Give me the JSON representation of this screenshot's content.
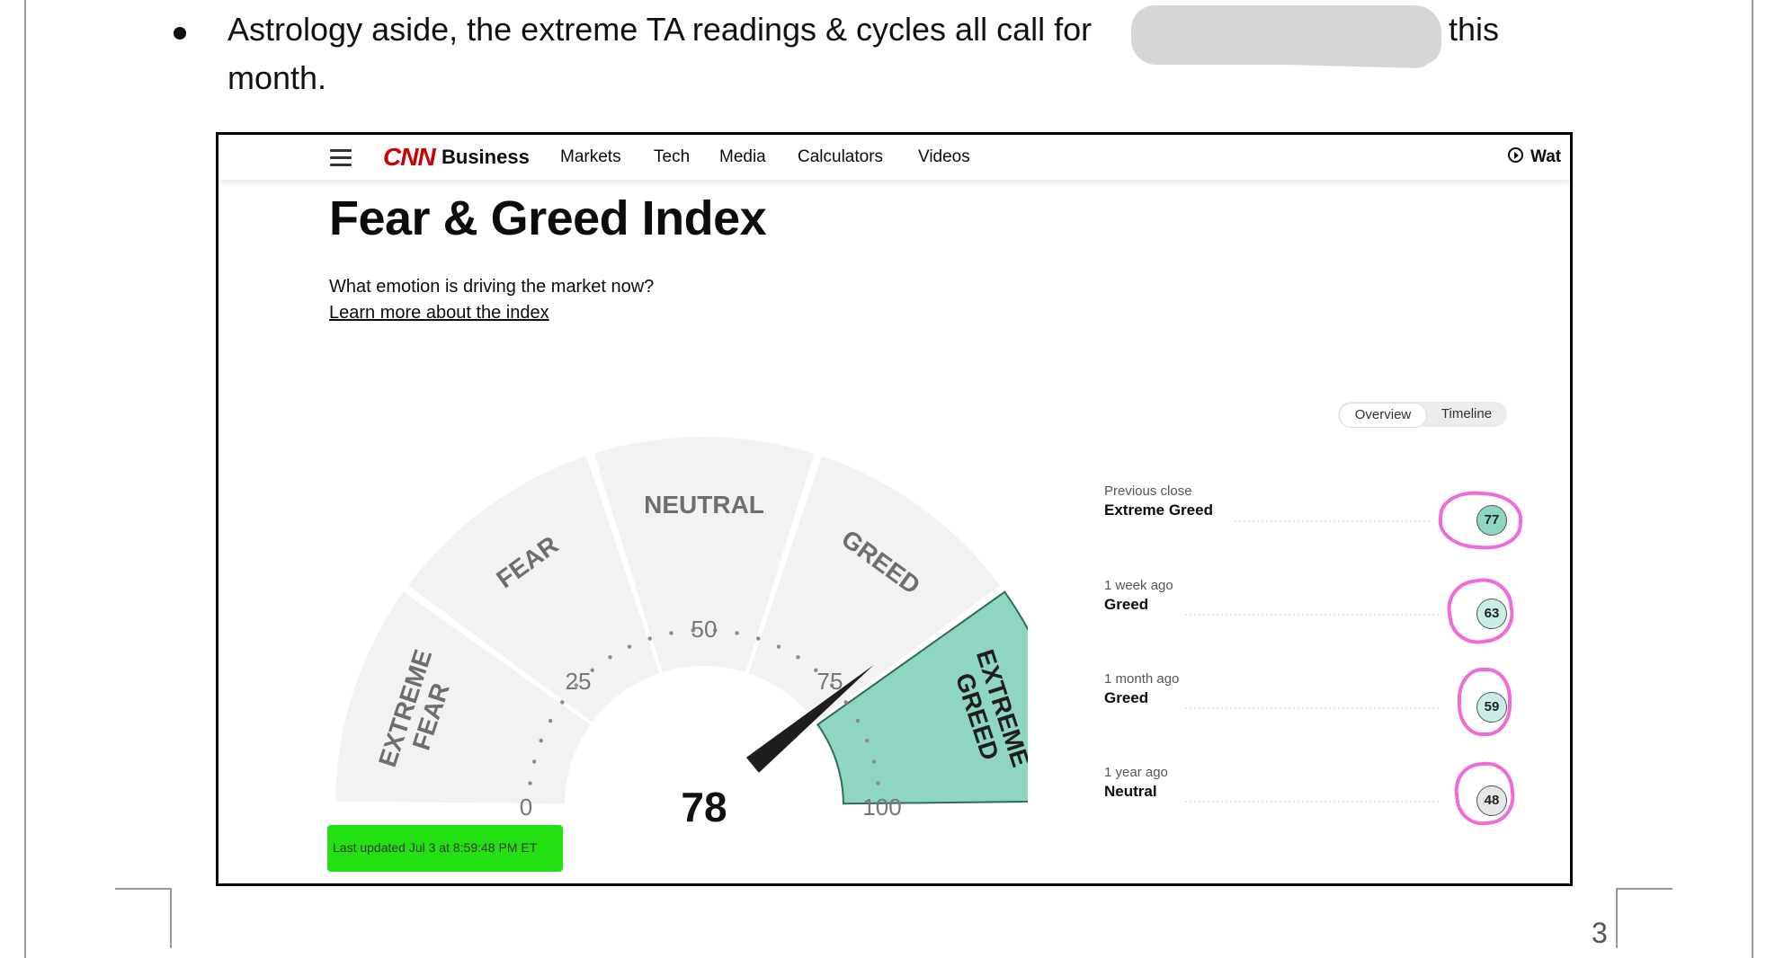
{
  "document": {
    "bullet_text_before": "Astrology aside, the extreme TA readings & cycles all call for",
    "bullet_text_after": "this",
    "bullet_text_line2": "month.",
    "page_number": "3"
  },
  "nav": {
    "logo_cnn": "CNN",
    "logo_business": "Business",
    "items": [
      "Markets",
      "Tech",
      "Media",
      "Calculators",
      "Videos"
    ],
    "watch": "Wat"
  },
  "header": {
    "title": "Fear & Greed Index",
    "subtitle": "What emotion is driving the market now?",
    "learn_more": "Learn more about the index"
  },
  "toggle": {
    "overview": "Overview",
    "timeline": "Timeline"
  },
  "gauge": {
    "value": 78,
    "min": 0,
    "max": 100,
    "ticks": [
      "0",
      "25",
      "50",
      "75",
      "100"
    ],
    "segments": [
      "EXTREME FEAR",
      "FEAR",
      "NEUTRAL",
      "GREED",
      "EXTREME GREED"
    ],
    "segment_lines": {
      "extreme_fear": [
        "EXTREME",
        "FEAR"
      ],
      "extreme_greed": [
        "EXTREME",
        "GREED"
      ]
    },
    "active_segment": "EXTREME GREED",
    "colors": {
      "inactive": "#f2f2f2",
      "active": "#8fd6c2",
      "active_border": "#2f6b57",
      "needle": "#1e1e1e"
    }
  },
  "history": [
    {
      "label": "Previous close",
      "rating": "Extreme Greed",
      "value": "77",
      "color": "#8fd6c2"
    },
    {
      "label": "1 week ago",
      "rating": "Greed",
      "value": "63",
      "color": "#c7ede5"
    },
    {
      "label": "1 month ago",
      "rating": "Greed",
      "value": "59",
      "color": "#c7ede5"
    },
    {
      "label": "1 year ago",
      "rating": "Neutral",
      "value": "48",
      "color": "#e6e6e6"
    }
  ],
  "last_updated": "Last updated Jul 3 at 8:59:48 PM ET",
  "highlights": {
    "ring_color": "#f06ad9",
    "updated_highlight": "#22e012"
  }
}
